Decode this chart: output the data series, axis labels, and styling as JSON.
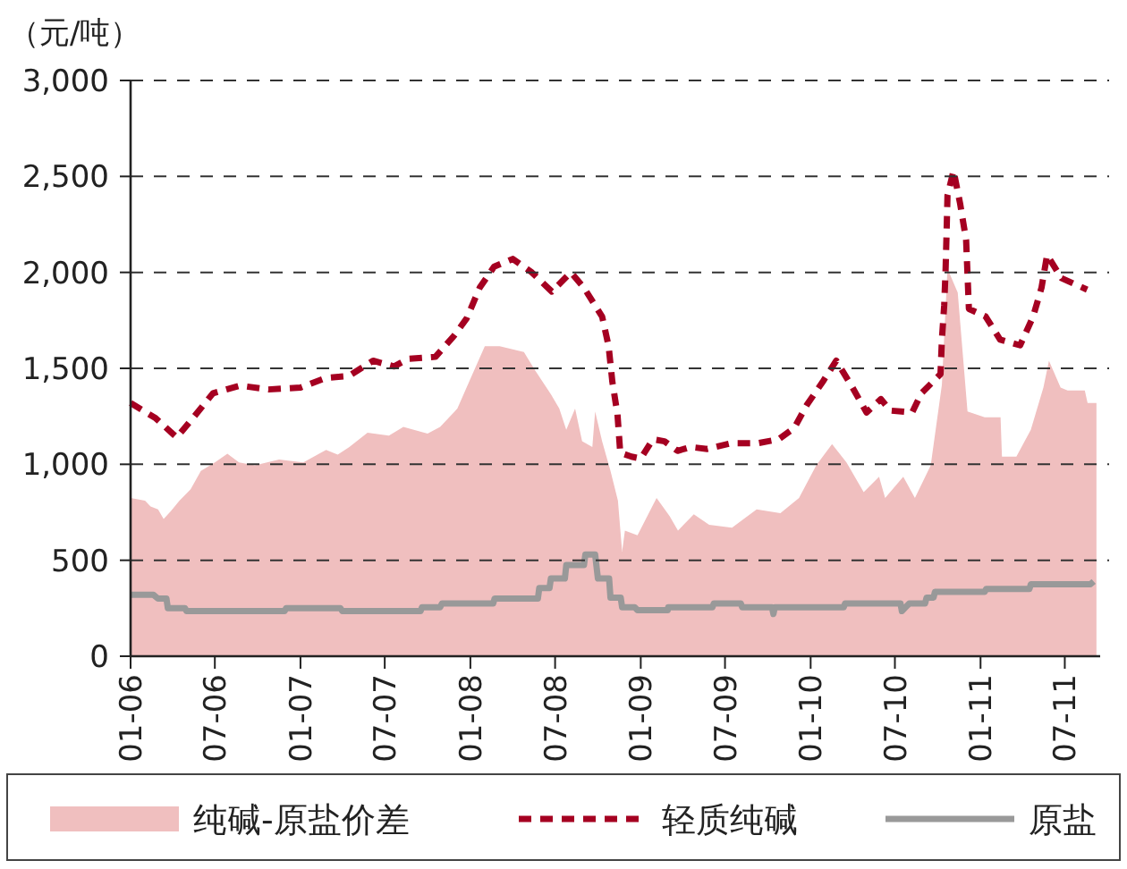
{
  "chart_data": {
    "type": "line",
    "ylabel": "（元/吨）",
    "xlim": [
      "2006-01-01",
      "2011-09-15"
    ],
    "xticks": [
      {
        "value": "2006-01-01",
        "label": "01-06"
      },
      {
        "value": "2006-07-01",
        "label": "07-06"
      },
      {
        "value": "2007-01-01",
        "label": "01-07"
      },
      {
        "value": "2007-07-01",
        "label": "07-07"
      },
      {
        "value": "2008-01-01",
        "label": "01-08"
      },
      {
        "value": "2008-07-01",
        "label": "07-08"
      },
      {
        "value": "2009-01-01",
        "label": "01-09"
      },
      {
        "value": "2009-07-01",
        "label": "07-09"
      },
      {
        "value": "2010-01-01",
        "label": "01-10"
      },
      {
        "value": "2010-07-01",
        "label": "07-10"
      },
      {
        "value": "2011-01-01",
        "label": "01-11"
      },
      {
        "value": "2011-07-01",
        "label": "07-11"
      }
    ],
    "ylim": [
      0,
      3000
    ],
    "yticks": [
      0,
      500,
      {
        "value": 1000,
        "label": "1,000"
      },
      {
        "value": 1500,
        "label": "1,500"
      },
      {
        "value": 2000,
        "label": "2,000"
      },
      {
        "value": 2500,
        "label": "2,500"
      },
      {
        "value": 3000,
        "label": "3,000"
      }
    ],
    "grid": "y",
    "legend": "bottom",
    "series": [
      {
        "name": "纯碱-原盐价差",
        "type": "area",
        "color": "#f0bfbf",
        "x": [
          "2006-01-01",
          "2006-02-01",
          "2006-02-13",
          "2006-03-01",
          "2006-03-13",
          "2006-03-28",
          "2006-04-16",
          "2006-05-10",
          "2006-06-01",
          "2006-07-01",
          "2006-07-28",
          "2006-08-22",
          "2006-09-25",
          "2006-11-16",
          "2007-01-07",
          "2007-02-25",
          "2007-03-22",
          "2007-04-16",
          "2007-05-25",
          "2007-07-10",
          "2007-08-10",
          "2007-10-01",
          "2007-10-28",
          "2007-12-04",
          "2008-01-01",
          "2008-02-01",
          "2008-03-04",
          "2008-04-25",
          "2008-05-19",
          "2008-06-22",
          "2008-07-10",
          "2008-07-25",
          "2008-08-13",
          "2008-08-28",
          "2008-09-19",
          "2008-09-25",
          "2008-10-10",
          "2008-10-28",
          "2008-11-13",
          "2008-11-22",
          "2008-11-28",
          "2008-12-25",
          "2009-02-04",
          "2009-03-04",
          "2009-03-22",
          "2009-04-25",
          "2009-05-28",
          "2009-07-16",
          "2009-09-07",
          "2009-10-28",
          "2009-12-07",
          "2010-01-13",
          "2010-02-16",
          "2010-03-19",
          "2010-04-25",
          "2010-05-28",
          "2010-06-10",
          "2010-07-19",
          "2010-08-13",
          "2010-09-16",
          "2010-10-10",
          "2010-10-22",
          "2010-11-13",
          "2010-12-04",
          "2011-01-10",
          "2011-02-13",
          "2011-02-16",
          "2011-03-19",
          "2011-04-19",
          "2011-05-16",
          "2011-05-28",
          "2011-06-22",
          "2011-07-07",
          "2011-08-13",
          "2011-08-19",
          "2011-09-07"
        ],
        "values": [
          825,
          810,
          780,
          765,
          715,
          755,
          810,
          870,
          965,
          1010,
          1055,
          1010,
          995,
          1025,
          1010,
          1075,
          1050,
          1090,
          1165,
          1150,
          1195,
          1160,
          1195,
          1290,
          1445,
          1615,
          1615,
          1585,
          1490,
          1365,
          1290,
          1180,
          1290,
          1120,
          1090,
          1275,
          1120,
          965,
          810,
          545,
          655,
          630,
          825,
          730,
          655,
          740,
          685,
          670,
          765,
          745,
          825,
          995,
          1105,
          1010,
          855,
          935,
          825,
          935,
          825,
          995,
          1415,
          2020,
          1895,
          1275,
          1245,
          1245,
          1040,
          1040,
          1180,
          1400,
          1540,
          1400,
          1385,
          1385,
          1320,
          1320
        ]
      },
      {
        "name": "轻质纯碱",
        "type": "line",
        "line_style": "dashed",
        "color": "#a50021",
        "x": [
          "2006-01-01",
          "2006-02-24",
          "2006-04-10",
          "2006-05-18",
          "2006-06-27",
          "2006-08-24",
          "2006-10-24",
          "2007-01-01",
          "2007-02-24",
          "2007-04-15",
          "2007-06-06",
          "2007-07-21",
          "2007-08-21",
          "2007-10-18",
          "2007-11-27",
          "2007-12-24",
          "2008-01-21",
          "2008-02-21",
          "2008-04-01",
          "2008-05-12",
          "2008-06-24",
          "2008-08-04",
          "2008-09-01",
          "2008-10-10",
          "2008-10-24",
          "2008-11-01",
          "2008-11-12",
          "2008-11-18",
          "2008-12-12",
          "2009-01-01",
          "2009-01-27",
          "2009-02-21",
          "2009-03-21",
          "2009-04-18",
          "2009-05-24",
          "2009-07-15",
          "2009-09-10",
          "2009-10-24",
          "2009-11-27",
          "2009-12-24",
          "2010-01-27",
          "2010-02-25",
          "2010-04-01",
          "2010-05-01",
          "2010-06-01",
          "2010-06-21",
          "2010-08-07",
          "2010-08-27",
          "2010-10-07",
          "2010-10-10",
          "2010-10-15",
          "2010-10-18",
          "2010-10-20",
          "2010-10-22",
          "2010-11-04",
          "2010-11-18",
          "2010-12-01",
          "2010-12-04",
          "2010-12-07",
          "2011-01-12",
          "2011-02-12",
          "2011-03-27",
          "2011-04-24",
          "2011-05-12",
          "2011-05-24",
          "2011-06-24",
          "2011-08-18"
        ],
        "values": [
          1320,
          1240,
          1140,
          1250,
          1370,
          1410,
          1390,
          1400,
          1450,
          1460,
          1540,
          1510,
          1550,
          1560,
          1670,
          1760,
          1920,
          2030,
          2070,
          2000,
          1900,
          2000,
          1920,
          1770,
          1615,
          1430,
          1260,
          1060,
          1040,
          1030,
          1130,
          1120,
          1070,
          1090,
          1080,
          1110,
          1110,
          1130,
          1190,
          1310,
          1430,
          1540,
          1400,
          1270,
          1340,
          1280,
          1270,
          1370,
          1470,
          1650,
          1830,
          2020,
          2200,
          2400,
          2530,
          2360,
          2170,
          1990,
          1810,
          1770,
          1650,
          1620,
          1770,
          1920,
          2090,
          1970,
          1910
        ]
      },
      {
        "name": "原盐",
        "type": "line",
        "line_style": "solid",
        "color": "#999999",
        "x": [
          "2006-01-01",
          "2006-02-19",
          "2006-03-01",
          "2006-03-19",
          "2006-03-22",
          "2006-04-28",
          "2006-05-01",
          "2006-11-28",
          "2006-12-01",
          "2007-03-28",
          "2007-04-01",
          "2007-09-16",
          "2007-09-19",
          "2007-10-28",
          "2007-11-01",
          "2008-02-19",
          "2008-02-22",
          "2008-05-25",
          "2008-05-28",
          "2008-06-19",
          "2008-06-22",
          "2008-07-22",
          "2008-07-25",
          "2008-09-01",
          "2008-09-04",
          "2008-09-25",
          "2008-10-01",
          "2008-10-25",
          "2008-10-28",
          "2008-11-19",
          "2008-11-22",
          "2008-12-19",
          "2008-12-25",
          "2009-02-28",
          "2009-03-01",
          "2009-06-04",
          "2009-06-07",
          "2009-08-04",
          "2009-08-07",
          "2009-10-10",
          "2009-10-13",
          "2009-10-16",
          "2010-03-13",
          "2010-03-16",
          "2010-07-13",
          "2010-07-16",
          "2010-08-01",
          "2010-09-04",
          "2010-09-07",
          "2010-09-22",
          "2010-09-25",
          "2011-01-10",
          "2011-01-13",
          "2011-04-16",
          "2011-04-19",
          "2011-08-25",
          "2011-09-01"
        ],
        "values": [
          320,
          320,
          300,
          300,
          250,
          250,
          235,
          235,
          250,
          250,
          235,
          235,
          255,
          255,
          275,
          275,
          300,
          300,
          355,
          355,
          405,
          405,
          475,
          475,
          530,
          530,
          405,
          405,
          305,
          305,
          255,
          255,
          240,
          240,
          255,
          255,
          275,
          275,
          255,
          255,
          220,
          255,
          255,
          275,
          275,
          235,
          275,
          275,
          305,
          305,
          335,
          335,
          350,
          350,
          375,
          375,
          390
        ]
      }
    ]
  }
}
